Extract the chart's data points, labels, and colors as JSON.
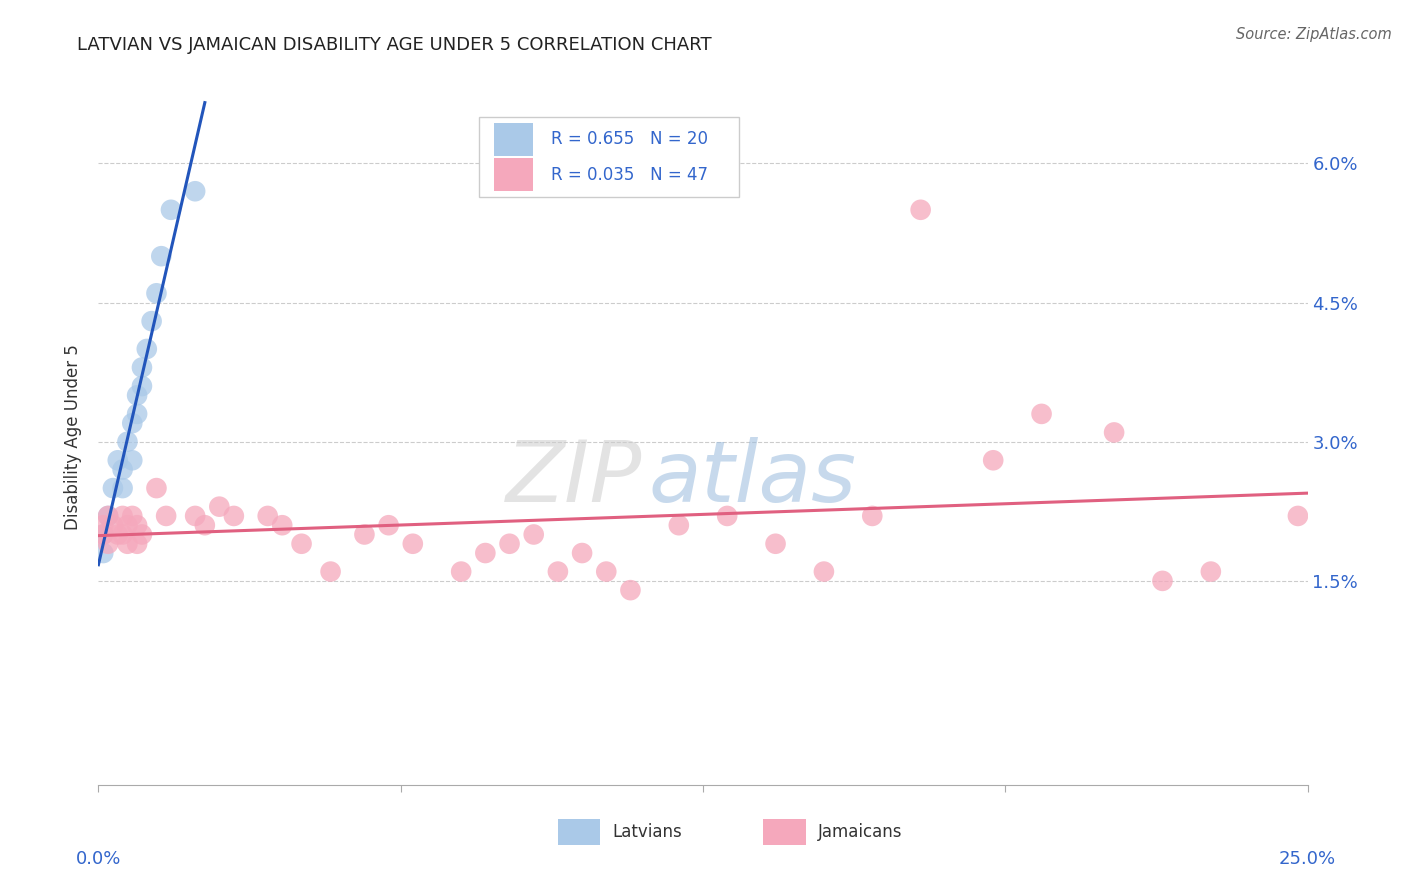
{
  "title": "LATVIAN VS JAMAICAN DISABILITY AGE UNDER 5 CORRELATION CHART",
  "source": "Source: ZipAtlas.com",
  "ylabel": "Disability Age Under 5",
  "xlim": [
    0.0,
    0.25
  ],
  "ylim": [
    -0.007,
    0.068
  ],
  "latvian_R": 0.655,
  "latvian_N": 20,
  "jamaican_R": 0.035,
  "jamaican_N": 47,
  "latvian_color": "#aac9e8",
  "jamaican_color": "#f5a8bc",
  "latvian_line_color": "#2255bb",
  "jamaican_line_color": "#e06080",
  "legend_latvian_label": "Latvians",
  "legend_jamaican_label": "Jamaicans",
  "watermark_zip": "ZIP",
  "watermark_atlas": "atlas",
  "background_color": "#ffffff",
  "latvian_x": [
    0.001,
    0.001,
    0.002,
    0.003,
    0.004,
    0.005,
    0.005,
    0.006,
    0.007,
    0.007,
    0.008,
    0.008,
    0.009,
    0.009,
    0.01,
    0.011,
    0.012,
    0.013,
    0.015,
    0.02
  ],
  "latvian_y": [
    0.02,
    0.018,
    0.022,
    0.025,
    0.028,
    0.025,
    0.027,
    0.03,
    0.028,
    0.032,
    0.035,
    0.033,
    0.038,
    0.036,
    0.04,
    0.043,
    0.046,
    0.05,
    0.055,
    0.057
  ],
  "jamaican_x": [
    0.001,
    0.001,
    0.002,
    0.002,
    0.003,
    0.004,
    0.005,
    0.005,
    0.006,
    0.006,
    0.007,
    0.008,
    0.008,
    0.009,
    0.012,
    0.014,
    0.02,
    0.022,
    0.025,
    0.028,
    0.035,
    0.038,
    0.042,
    0.048,
    0.055,
    0.06,
    0.065,
    0.075,
    0.08,
    0.085,
    0.09,
    0.095,
    0.1,
    0.105,
    0.11,
    0.12,
    0.13,
    0.14,
    0.15,
    0.16,
    0.17,
    0.185,
    0.195,
    0.21,
    0.22,
    0.23,
    0.248
  ],
  "jamaican_y": [
    0.021,
    0.02,
    0.022,
    0.019,
    0.021,
    0.02,
    0.022,
    0.02,
    0.021,
    0.019,
    0.022,
    0.021,
    0.019,
    0.02,
    0.025,
    0.022,
    0.022,
    0.021,
    0.023,
    0.022,
    0.022,
    0.021,
    0.019,
    0.016,
    0.02,
    0.021,
    0.019,
    0.016,
    0.018,
    0.019,
    0.02,
    0.016,
    0.018,
    0.016,
    0.014,
    0.021,
    0.022,
    0.019,
    0.016,
    0.022,
    0.055,
    0.028,
    0.033,
    0.031,
    0.015,
    0.016,
    0.022
  ]
}
